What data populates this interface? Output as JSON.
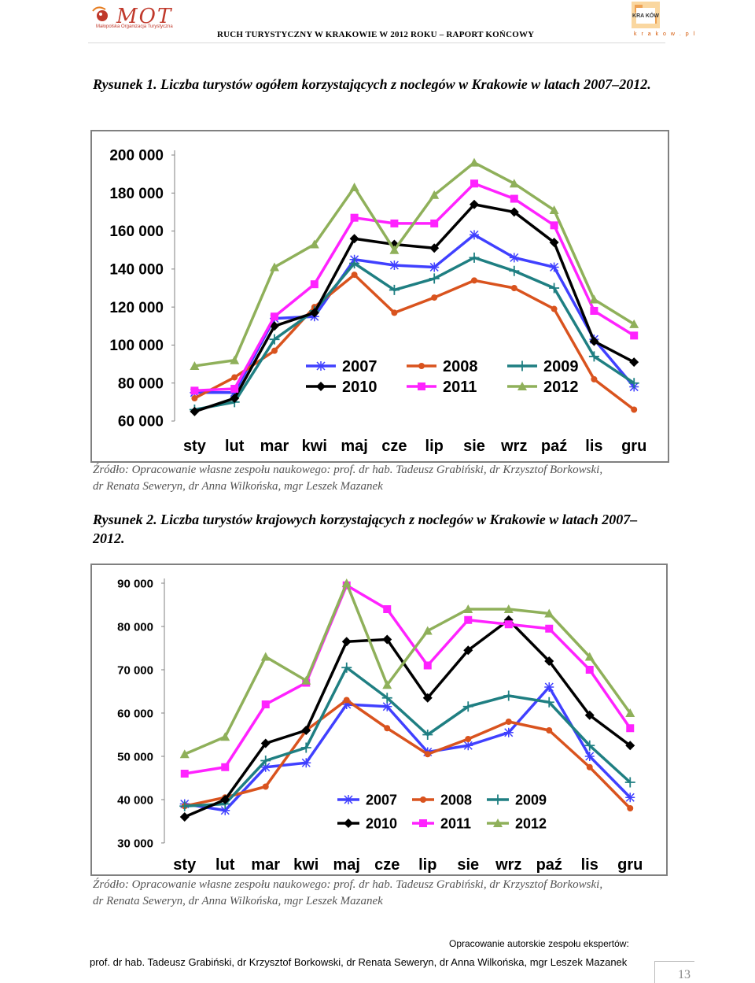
{
  "header": {
    "mot_logo_text": "MOT",
    "mot_logo_subtitle": "Małopolska Organizacja Turystyczna",
    "report_title": "RUCH TURYSTYCZNY W KRAKOWIE W 2012 ROKU – RAPORT KOŃCOWY",
    "krakow_logo_text": "KRA KÓW",
    "krakow_url": "k r a k o w . p l"
  },
  "figure1": {
    "caption": "Rysunek 1. Liczba turystów ogółem korzystających z noclegów w Krakowie w latach 2007–2012.",
    "source_line1": "Źródło: Opracowanie własne zespołu naukowego: prof. dr hab. Tadeusz Grabiński, dr Krzysztof Borkowski,",
    "source_line2": "dr Renata Seweryn, dr Anna Wilkońska, mgr Leszek Mazanek"
  },
  "figure2": {
    "caption": "Rysunek 2. Liczba turystów krajowych korzystających z noclegów w Krakowie w latach 2007–2012.",
    "source_line1": "Źródło: Opracowanie własne zespołu naukowego: prof. dr hab. Tadeusz Grabiński, dr Krzysztof Borkowski,",
    "source_line2": "dr Renata Seweryn, dr Anna Wilkońska, mgr Leszek Mazanek"
  },
  "footer": {
    "line1": "Opracowanie autorskie zespołu ekspertów:",
    "line2": "prof. dr hab. Tadeusz Grabiński, dr Krzysztof Borkowski, dr Renata Seweryn, dr Anna Wilkońska, mgr Leszek Mazanek",
    "page_number": "13"
  },
  "colors": {
    "2007": "#4040ff",
    "2008": "#d9531e",
    "2009": "#1f7f82",
    "2010": "#000000",
    "2011": "#ff22ff",
    "2012": "#8fb05a"
  },
  "chart_data": [
    {
      "type": "line",
      "categories": [
        "sty",
        "lut",
        "mar",
        "kwi",
        "maj",
        "cze",
        "lip",
        "sie",
        "wrz",
        "paź",
        "lis",
        "gru"
      ],
      "ylim": [
        60000,
        200000
      ],
      "yticks": [
        60000,
        80000,
        100000,
        120000,
        140000,
        160000,
        180000,
        200000
      ],
      "ytick_labels": [
        "60 000",
        "80 000",
        "100 000",
        "120 000",
        "140 000",
        "160 000",
        "180 000",
        "200 000"
      ],
      "grid": false,
      "legend_position": "bottom-center",
      "series": [
        {
          "name": "2007",
          "marker": "star",
          "values": [
            75000,
            75000,
            114000,
            115000,
            145000,
            142000,
            141000,
            158000,
            146000,
            141000,
            103000,
            78000
          ]
        },
        {
          "name": "2008",
          "marker": "circle",
          "values": [
            72000,
            83000,
            97000,
            120000,
            137000,
            117000,
            125000,
            134000,
            130000,
            119000,
            82000,
            66000
          ]
        },
        {
          "name": "2009",
          "marker": "plus",
          "values": [
            66000,
            70000,
            103000,
            118000,
            143000,
            129000,
            135000,
            146000,
            139000,
            130000,
            94000,
            80000
          ]
        },
        {
          "name": "2010",
          "marker": "diamond",
          "values": [
            65000,
            72000,
            110000,
            117000,
            156000,
            153000,
            151000,
            174000,
            170000,
            154000,
            102000,
            91000
          ]
        },
        {
          "name": "2011",
          "marker": "square",
          "values": [
            76000,
            77000,
            115000,
            132000,
            167000,
            164000,
            164000,
            185000,
            177000,
            163000,
            118000,
            105000
          ]
        },
        {
          "name": "2012",
          "marker": "triangle",
          "values": [
            89000,
            92000,
            141000,
            153000,
            183000,
            150000,
            179000,
            196000,
            185000,
            171000,
            124000,
            111000
          ]
        }
      ]
    },
    {
      "type": "line",
      "categories": [
        "sty",
        "lut",
        "mar",
        "kwi",
        "maj",
        "cze",
        "lip",
        "sie",
        "wrz",
        "paź",
        "lis",
        "gru"
      ],
      "ylim": [
        30000,
        90000
      ],
      "yticks": [
        30000,
        40000,
        50000,
        60000,
        70000,
        80000,
        90000
      ],
      "ytick_labels": [
        "30 000",
        "40 000",
        "50 000",
        "60 000",
        "70 000",
        "80 000",
        "90 000"
      ],
      "grid": false,
      "legend_position": "bottom-center",
      "series": [
        {
          "name": "2007",
          "marker": "star",
          "values": [
            39000,
            37500,
            47500,
            48500,
            62000,
            61500,
            51000,
            52500,
            55500,
            66000,
            50000,
            40500
          ]
        },
        {
          "name": "2008",
          "marker": "circle",
          "values": [
            38500,
            40500,
            43000,
            56000,
            63000,
            56500,
            50500,
            54000,
            58000,
            56000,
            47500,
            38000
          ]
        },
        {
          "name": "2009",
          "marker": "plus",
          "values": [
            38500,
            39000,
            49000,
            52000,
            70500,
            63500,
            55000,
            61500,
            64000,
            62500,
            52500,
            44000
          ]
        },
        {
          "name": "2010",
          "marker": "diamond",
          "values": [
            36000,
            40000,
            53000,
            56000,
            76500,
            77000,
            63500,
            74500,
            81500,
            72000,
            59500,
            52500
          ]
        },
        {
          "name": "2011",
          "marker": "square",
          "values": [
            46000,
            47500,
            62000,
            67000,
            89500,
            84000,
            71000,
            81500,
            80500,
            79500,
            70000,
            56500
          ]
        },
        {
          "name": "2012",
          "marker": "triangle",
          "values": [
            50500,
            54500,
            73000,
            67500,
            90000,
            66500,
            79000,
            84000,
            84000,
            83000,
            73000,
            60000
          ]
        }
      ]
    }
  ]
}
